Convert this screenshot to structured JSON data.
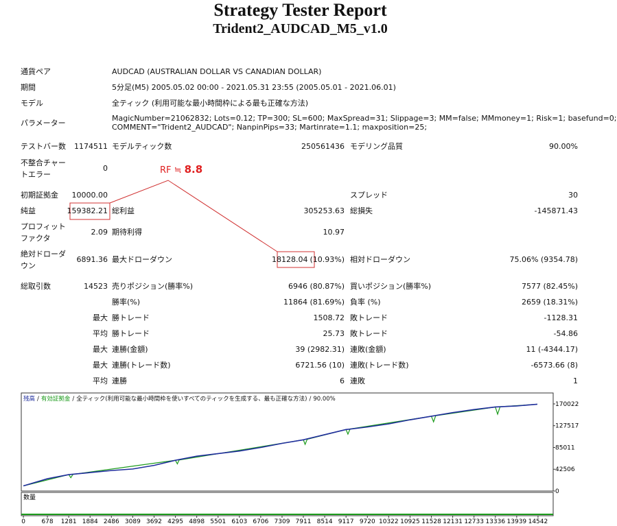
{
  "header": {
    "title": "Strategy Tester Report",
    "subtitle": "Trident2_AUDCAD_M5_v1.0"
  },
  "info": [
    {
      "label": "通貨ペア",
      "value": "AUDCAD (AUSTRALIAN DOLLAR VS CANADIAN DOLLAR)"
    },
    {
      "label": "期間",
      "value": "5分足(M5) 2005.05.02 00:00 - 2021.05.31 23:55 (2005.05.01 - 2021.06.01)"
    },
    {
      "label": "モデル",
      "value": "全ティック (利用可能な最小時間枠による最も正確な方法)"
    }
  ],
  "parameters": {
    "label": "パラメーター",
    "lines": [
      "MagicNumber=21062832; Lots=0.12; TP=300; SL=600; MaxSpread=31; Slippage=3; MM=false; MMmoney=1; Risk=1; basefund=0;",
      "COMMENT=\"Trident2_AUDCAD\"; NanpinPips=33; Martinrate=1.1; maxposition=25;"
    ]
  },
  "stats": [
    {
      "l1": "テストバー数",
      "v1": "1174511",
      "l2": "モデルティック数",
      "v2": "250561436",
      "l3": "モデリング品質",
      "v3": "90.00%"
    },
    {
      "l1": "不整合チャートエラー",
      "v1": "0"
    },
    {
      "l1": "初期証拠金",
      "v1": "10000.00",
      "l3": "スプレッド",
      "v3": "30"
    },
    {
      "l1": "純益",
      "v1": "159382.21",
      "l2": "総利益",
      "v2": "305253.63",
      "l3": "総損失",
      "v3": "-145871.43"
    },
    {
      "l1": "プロフィットファクタ",
      "v1": "2.09",
      "l2": "期待利得",
      "v2": "10.97"
    },
    {
      "l1": "絶対ドローダウン",
      "v1": "6891.36",
      "l2": "最大ドローダウン",
      "v2": "18128.04",
      "v2b": "(10.93%)",
      "l3": "相対ドローダウン",
      "v3": "75.06% (9354.78)"
    },
    {
      "l1": "総取引数",
      "v1": "14523",
      "l2": "売りポジション(勝率%)",
      "v2": "6946 (80.87%)",
      "l3": "買いポジション(勝率%)",
      "v3": "7577 (82.45%)"
    },
    {
      "l2": "勝率(%)",
      "v2": "11864 (81.69%)",
      "l3": "負率 (%)",
      "v3": "2659 (18.31%)"
    },
    {
      "v1": "最大",
      "l2": "勝トレード",
      "v2": "1508.72",
      "l3": "敗トレード",
      "v3": "-1128.31"
    },
    {
      "v1": "平均",
      "l2": "勝トレード",
      "v2": "25.73",
      "l3": "敗トレード",
      "v3": "-54.86"
    },
    {
      "v1": "最大",
      "l2": "連勝(金額)",
      "v2": "39 (2982.31)",
      "l3": "連敗(金額)",
      "v3": "11 (-4344.17)"
    },
    {
      "v1": "最大",
      "l2": "連勝(トレード数)",
      "v2": "6721.56 (10)",
      "l3": "連敗(トレード数)",
      "v3": "-6573.66 (8)"
    },
    {
      "v1": "平均",
      "l2": "連勝",
      "v2": "6",
      "l3": "連敗",
      "v3": "1"
    }
  ],
  "annotation": {
    "prefix": "RF ≒",
    "value": "8.8"
  },
  "chart_data": {
    "type": "line",
    "legend_separator": "/",
    "legend_note": "全ティック(利用可能な最小時間枠を使いすべてのティックを生成する、最も正確な方法)",
    "quality": "90.00%",
    "volume_label": "数量",
    "xlim": [
      -60,
      14970
    ],
    "ylim": [
      0,
      191400
    ],
    "xticks": [
      0,
      678,
      1281,
      1884,
      2486,
      3089,
      3692,
      4295,
      4898,
      5501,
      6103,
      6706,
      7309,
      7911,
      8514,
      9117,
      9720,
      10322,
      10925,
      11528,
      12131,
      12733,
      13336,
      13939,
      14542
    ],
    "yticks": [
      0,
      42506,
      85011,
      127517,
      170022
    ],
    "series": [
      {
        "name": "残高",
        "color": "#1f2d9c",
        "x": [
          0,
          678,
          1281,
          1884,
          2486,
          3089,
          3692,
          4295,
          4898,
          5501,
          6103,
          6706,
          7309,
          7911,
          8514,
          9117,
          9720,
          10322,
          10925,
          11528,
          12131,
          12733,
          13336,
          13939,
          14523
        ],
        "values": [
          10000,
          24000,
          32000,
          36000,
          40000,
          43000,
          50000,
          60000,
          68000,
          73000,
          78000,
          85000,
          93000,
          100000,
          110000,
          120000,
          125000,
          131000,
          139000,
          146000,
          153000,
          159000,
          164000,
          166000,
          169382
        ]
      },
      {
        "name": "有効証拠金",
        "color": "#1a9a1a",
        "x": [
          0,
          1281,
          1340,
          1400,
          4295,
          4350,
          4400,
          7911,
          7960,
          8020,
          9117,
          9170,
          9230,
          11528,
          11590,
          11650,
          13336,
          13400,
          13470,
          14523
        ],
        "values": [
          10000,
          32000,
          26000,
          32500,
          60000,
          53000,
          60500,
          100000,
          91000,
          101000,
          120000,
          111000,
          121000,
          146000,
          135000,
          147000,
          164000,
          150000,
          164500,
          169382
        ]
      }
    ]
  }
}
